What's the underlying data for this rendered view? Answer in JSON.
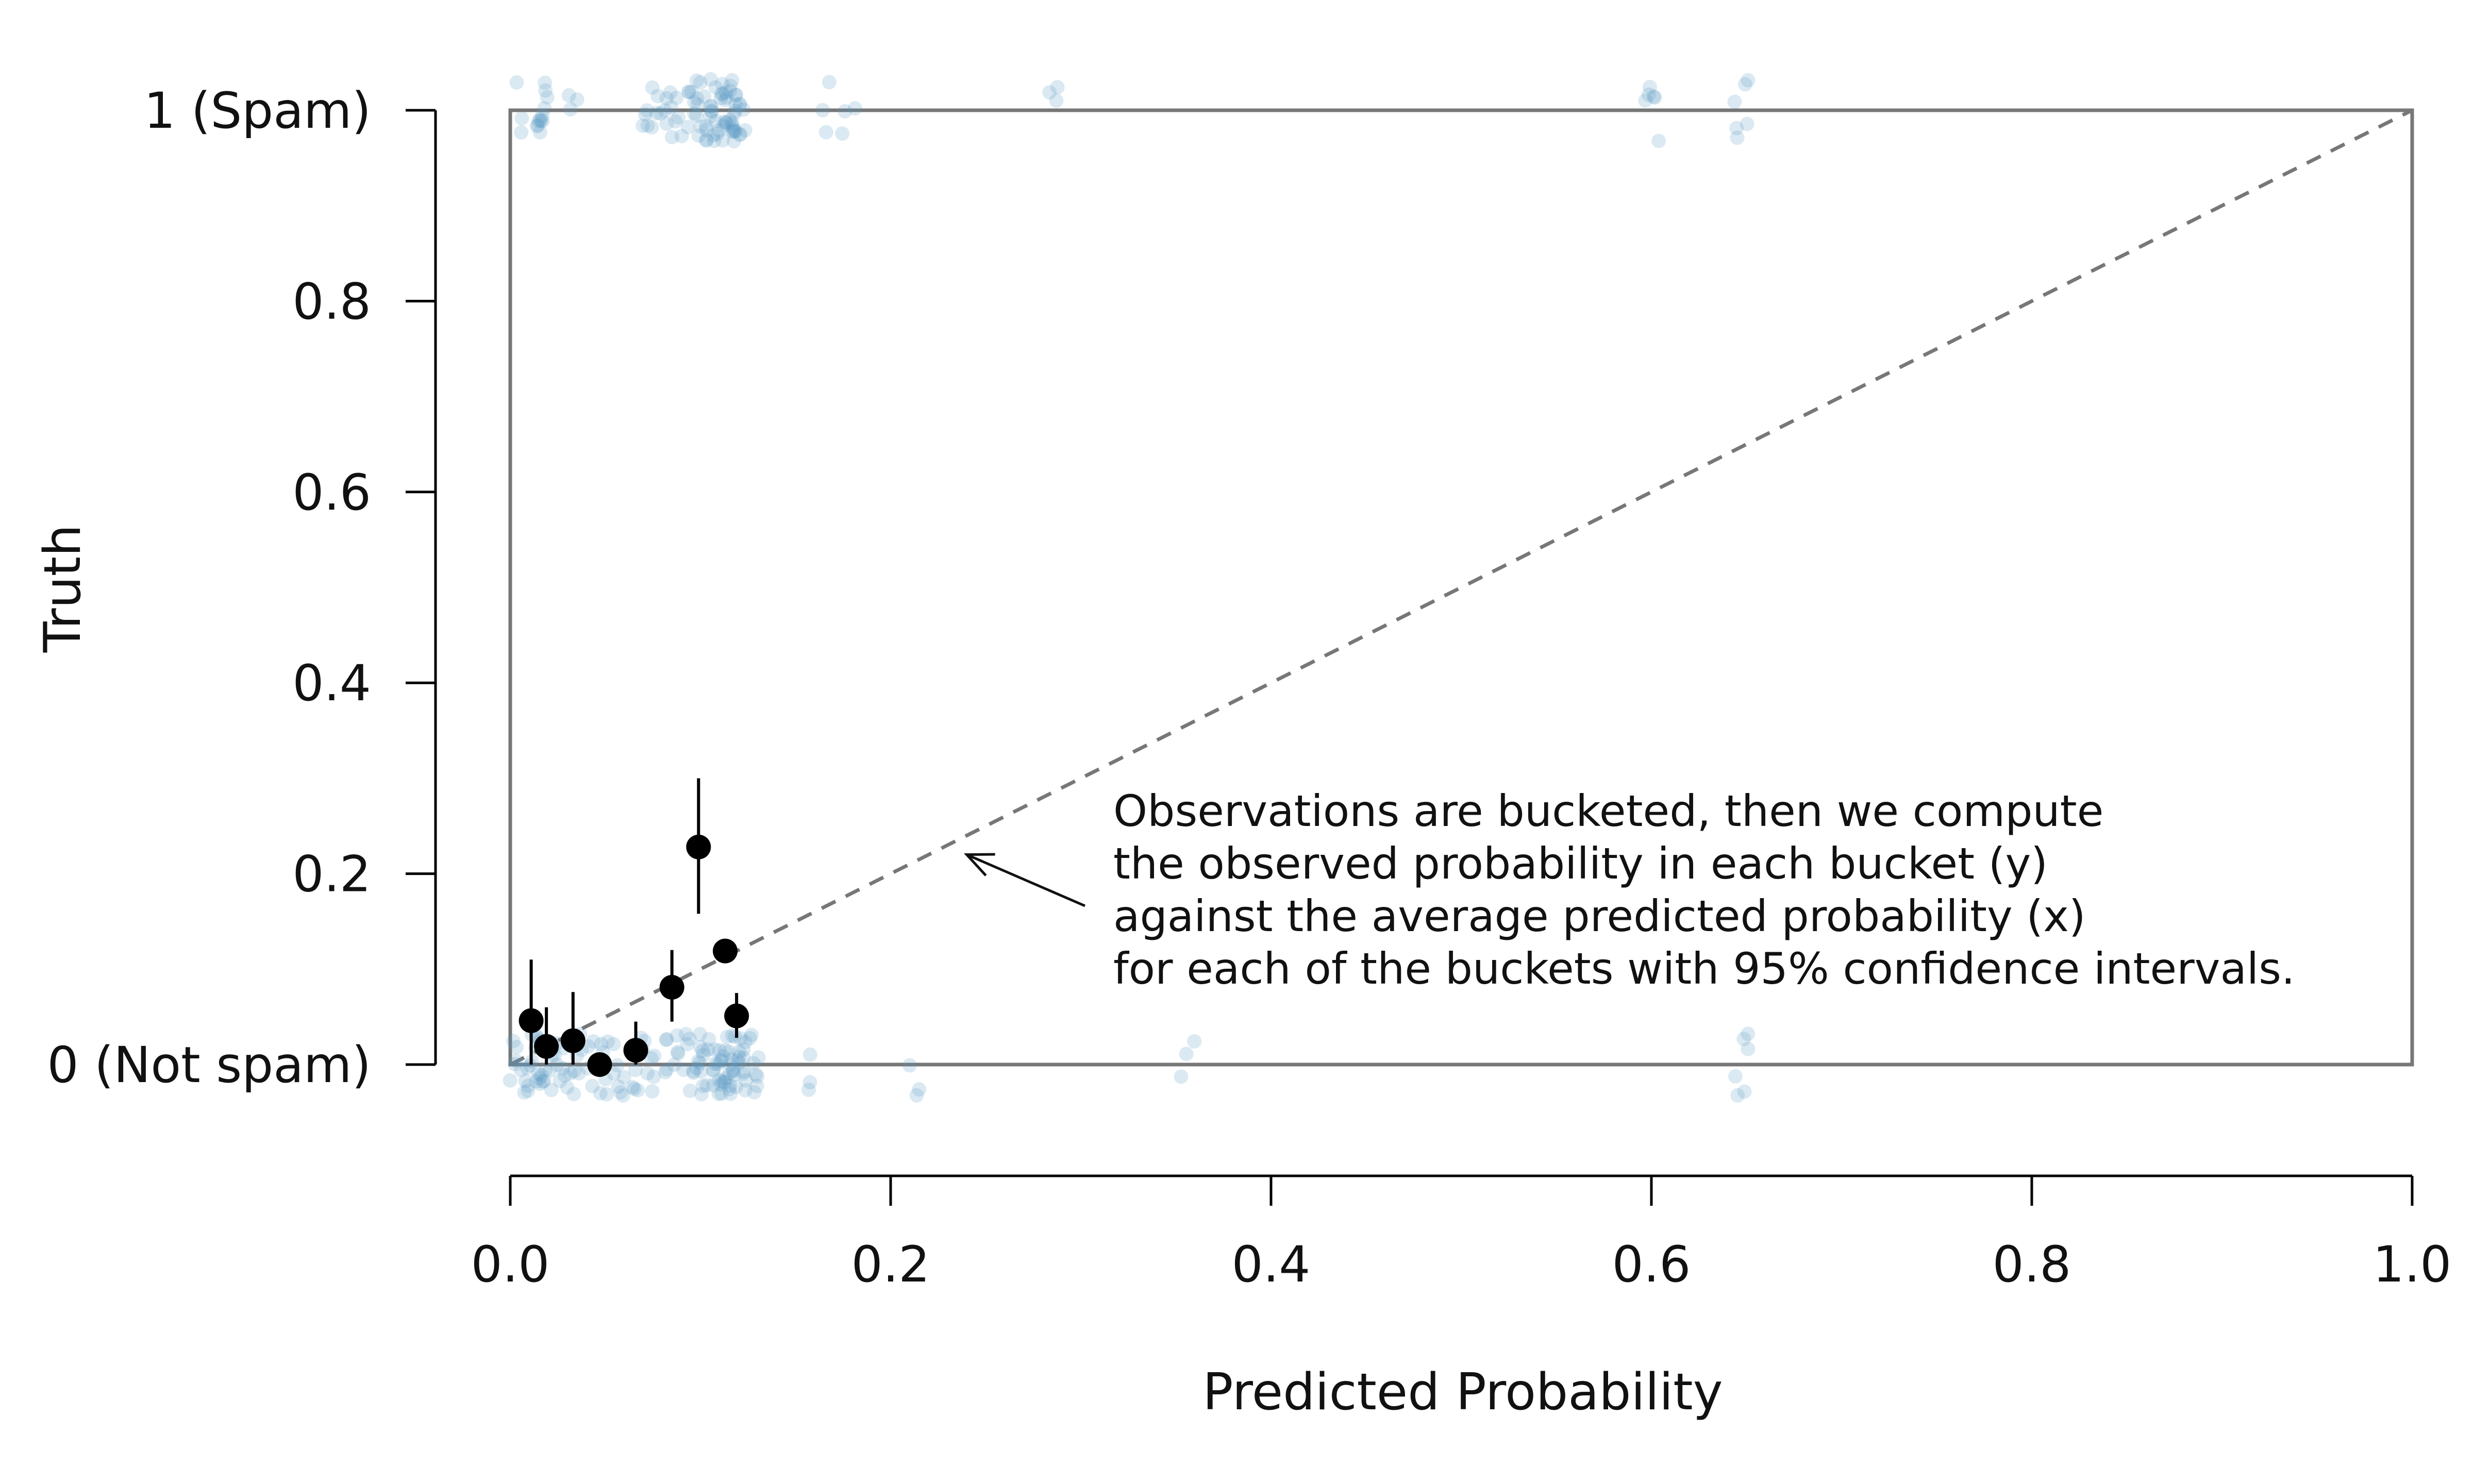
{
  "chart_data": {
    "type": "scatter",
    "title": "",
    "xlabel": "Predicted Probability",
    "ylabel": "Truth",
    "xlim": [
      0,
      1
    ],
    "ylim": [
      0,
      1
    ],
    "x_ticks": [
      {
        "value": 0.0,
        "label": "0.0"
      },
      {
        "value": 0.2,
        "label": "0.2"
      },
      {
        "value": 0.4,
        "label": "0.4"
      },
      {
        "value": 0.6,
        "label": "0.6"
      },
      {
        "value": 0.8,
        "label": "0.8"
      },
      {
        "value": 1.0,
        "label": "1.0"
      }
    ],
    "y_ticks": [
      {
        "value": 0.0,
        "label": "0 (Not spam)"
      },
      {
        "value": 0.2,
        "label": "0.2"
      },
      {
        "value": 0.4,
        "label": "0.4"
      },
      {
        "value": 0.6,
        "label": "0.6"
      },
      {
        "value": 0.8,
        "label": "0.8"
      },
      {
        "value": 1.0,
        "label": "1 (Spam)"
      }
    ],
    "grid": false,
    "reference_line": {
      "from": [
        0,
        0
      ],
      "to": [
        1,
        1
      ],
      "style": "dashed"
    },
    "buckets": [
      {
        "x": 0.011,
        "y": 0.046,
        "lo": 0.0,
        "hi": 0.11
      },
      {
        "x": 0.019,
        "y": 0.019,
        "lo": 0.0,
        "hi": 0.06
      },
      {
        "x": 0.033,
        "y": 0.025,
        "lo": 0.0,
        "hi": 0.076
      },
      {
        "x": 0.047,
        "y": 0.0,
        "lo": 0.0,
        "hi": 0.0
      },
      {
        "x": 0.066,
        "y": 0.015,
        "lo": 0.0,
        "hi": 0.045
      },
      {
        "x": 0.085,
        "y": 0.081,
        "lo": 0.045,
        "hi": 0.12
      },
      {
        "x": 0.099,
        "y": 0.228,
        "lo": 0.158,
        "hi": 0.3
      },
      {
        "x": 0.113,
        "y": 0.119,
        "lo": 0.119,
        "hi": 0.119
      },
      {
        "x": 0.119,
        "y": 0.051,
        "lo": 0.028,
        "hi": 0.075
      }
    ],
    "observations": {
      "spam": [
        0.005,
        0.018,
        0.018,
        0.019,
        0.02,
        0.032,
        0.07,
        0.075,
        0.08,
        0.083,
        0.085,
        0.088,
        0.09,
        0.095,
        0.098,
        0.1,
        0.102,
        0.104,
        0.106,
        0.107,
        0.108,
        0.109,
        0.11,
        0.111,
        0.112,
        0.113,
        0.114,
        0.115,
        0.116,
        0.117,
        0.118,
        0.12,
        0.122,
        0.124,
        0.165,
        0.178,
        0.286,
        0.598,
        0.6,
        0.647,
        0.648
      ],
      "not_spam": [
        0.003,
        0.005,
        0.008,
        0.01,
        0.012,
        0.014,
        0.016,
        0.018,
        0.02,
        0.022,
        0.025,
        0.028,
        0.03,
        0.033,
        0.036,
        0.04,
        0.044,
        0.047,
        0.05,
        0.054,
        0.058,
        0.062,
        0.066,
        0.07,
        0.074,
        0.078,
        0.082,
        0.085,
        0.088,
        0.092,
        0.095,
        0.098,
        0.1,
        0.102,
        0.104,
        0.106,
        0.108,
        0.11,
        0.111,
        0.112,
        0.113,
        0.114,
        0.115,
        0.116,
        0.117,
        0.118,
        0.119,
        0.12,
        0.122,
        0.124,
        0.126,
        0.128,
        0.13,
        0.157,
        0.214,
        0.356,
        0.648,
        0.648
      ]
    },
    "annotation": {
      "lines": [
        "Observations are bucketed, then we compute",
        "the observed probability in each bucket (y)",
        "against the average predicted probability (x)",
        "for each of the buckets with 95% confidence intervals."
      ],
      "arrow_target": [
        0.24,
        0.22
      ]
    },
    "colors": {
      "observations": "#5b9ac4",
      "buckets": "#000000",
      "frame": "#777777",
      "reference_line": "#777777",
      "axes": "#000000"
    }
  }
}
